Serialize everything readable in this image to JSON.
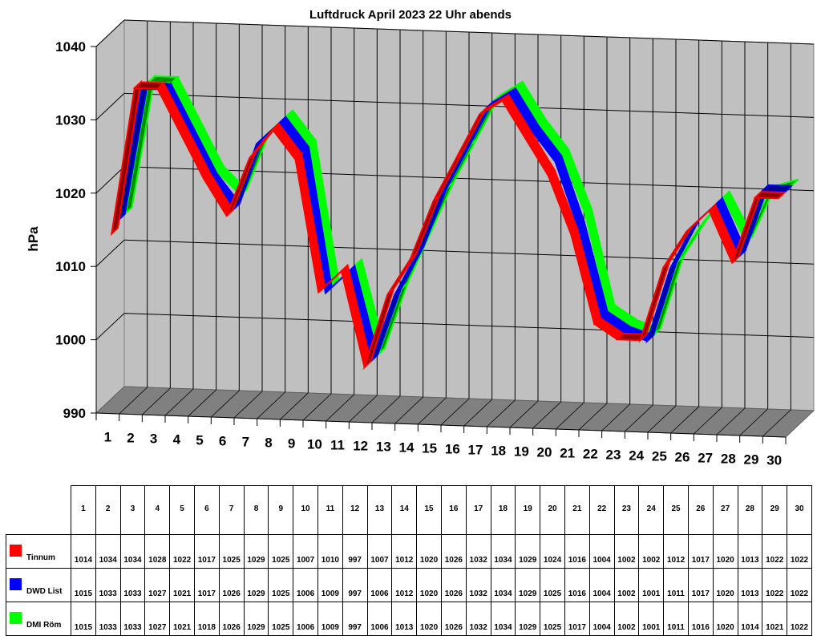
{
  "chart_data": {
    "type": "line",
    "style": "3d-ribbon",
    "title": "Luftdruck April 2023 22 Uhr abends",
    "xlabel": "",
    "ylabel": "hPa",
    "ylim": [
      990,
      1040
    ],
    "yticks": [
      990,
      1000,
      1010,
      1020,
      1030,
      1040
    ],
    "grid": true,
    "legend_position": "table-below",
    "categories": [
      "1",
      "2",
      "3",
      "4",
      "5",
      "6",
      "7",
      "8",
      "9",
      "10",
      "11",
      "12",
      "13",
      "14",
      "15",
      "16",
      "17",
      "18",
      "19",
      "20",
      "21",
      "22",
      "23",
      "24",
      "25",
      "26",
      "27",
      "28",
      "29",
      "30"
    ],
    "series": [
      {
        "name": "Tinnum",
        "color": "#ff0000",
        "values": [
          1014,
          1034,
          1034,
          1028,
          1022,
          1017,
          1025,
          1029,
          1025,
          1007,
          1010,
          997,
          1007,
          1012,
          1020,
          1026,
          1032,
          1034,
          1029,
          1024,
          1016,
          1004,
          1002,
          1002,
          1012,
          1017,
          1020,
          1013,
          1022,
          1022
        ]
      },
      {
        "name": "DWD List",
        "color": "#0000ff",
        "values": [
          1015,
          1033,
          1033,
          1027,
          1021,
          1017,
          1026,
          1029,
          1025,
          1006,
          1009,
          997,
          1006,
          1012,
          1020,
          1026,
          1032,
          1034,
          1029,
          1025,
          1016,
          1004,
          1002,
          1001,
          1011,
          1017,
          1020,
          1013,
          1022,
          1022
        ]
      },
      {
        "name": "DMI Röm",
        "color": "#00ff00",
        "values": [
          1015,
          1033,
          1033,
          1027,
          1021,
          1018,
          1026,
          1029,
          1025,
          1006,
          1009,
          997,
          1006,
          1013,
          1020,
          1026,
          1032,
          1034,
          1029,
          1025,
          1017,
          1004,
          1002,
          1001,
          1011,
          1016,
          1020,
          1014,
          1021,
          1022
        ]
      }
    ]
  },
  "colors": {
    "wall": "#c0c0c0",
    "floor": "#808080",
    "side_wall": "#c0c0c0"
  }
}
